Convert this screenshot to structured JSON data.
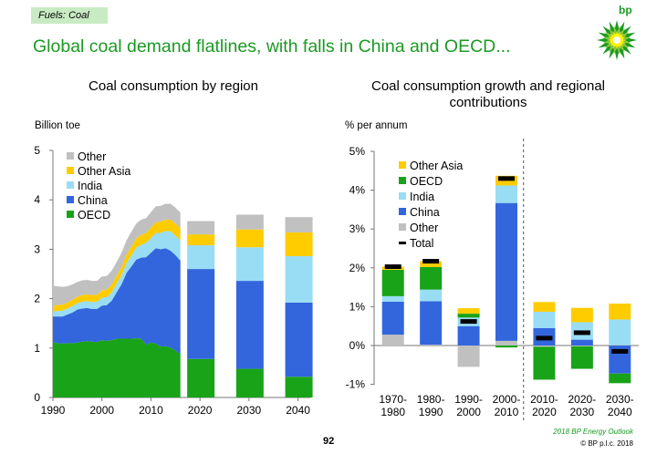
{
  "tag": "Fuels: Coal",
  "headline": "Global coal demand flatlines, with falls in China and OECD...",
  "logo_text": "bp",
  "page_number": "92",
  "source": "2018 BP Energy Outlook",
  "copyright": "© BP p.l.c. 2018",
  "colors": {
    "Other": "#c0c0c0",
    "Other Asia": "#ffcc00",
    "India": "#99ddf5",
    "China": "#3366dd",
    "OECD": "#19a319",
    "Total": "#000000"
  },
  "chart_data": [
    {
      "type": "area",
      "title": "Coal consumption by region",
      "ylabel": "Billion toe",
      "ylim": [
        0,
        5
      ],
      "yticks": [
        "0",
        "1",
        "2",
        "3",
        "4",
        "5"
      ],
      "xticks": [
        "1990",
        "2000",
        "2010",
        "2020",
        "2030",
        "2040"
      ],
      "legend": [
        "Other",
        "Other Asia",
        "India",
        "China",
        "OECD"
      ],
      "legend_position": "top-left",
      "historical": {
        "x": [
          1990,
          1991,
          1992,
          1993,
          1994,
          1995,
          1996,
          1997,
          1998,
          1999,
          2000,
          2001,
          2002,
          2003,
          2004,
          2005,
          2006,
          2007,
          2008,
          2009,
          2010,
          2011,
          2012,
          2013,
          2014,
          2015,
          2016
        ],
        "series": [
          {
            "name": "OECD",
            "values": [
              1.12,
              1.1,
              1.09,
              1.1,
              1.1,
              1.11,
              1.13,
              1.14,
              1.13,
              1.12,
              1.16,
              1.15,
              1.16,
              1.19,
              1.19,
              1.19,
              1.19,
              1.2,
              1.19,
              1.07,
              1.11,
              1.09,
              1.03,
              1.04,
              1.01,
              0.95,
              0.88
            ]
          },
          {
            "name": "China",
            "values": [
              0.52,
              0.54,
              0.55,
              0.58,
              0.62,
              0.67,
              0.67,
              0.67,
              0.66,
              0.67,
              0.7,
              0.72,
              0.8,
              0.94,
              1.1,
              1.33,
              1.46,
              1.59,
              1.64,
              1.77,
              1.82,
              1.93,
              1.97,
              1.98,
              1.96,
              1.93,
              1.89
            ]
          },
          {
            "name": "India",
            "values": [
              0.1,
              0.11,
              0.12,
              0.12,
              0.13,
              0.13,
              0.14,
              0.14,
              0.14,
              0.15,
              0.16,
              0.16,
              0.17,
              0.17,
              0.18,
              0.2,
              0.22,
              0.24,
              0.26,
              0.29,
              0.3,
              0.31,
              0.33,
              0.35,
              0.39,
              0.4,
              0.41
            ]
          },
          {
            "name": "Other Asia",
            "values": [
              0.12,
              0.12,
              0.12,
              0.12,
              0.13,
              0.13,
              0.13,
              0.14,
              0.14,
              0.14,
              0.15,
              0.15,
              0.16,
              0.16,
              0.17,
              0.17,
              0.18,
              0.19,
              0.2,
              0.2,
              0.21,
              0.22,
              0.23,
              0.23,
              0.24,
              0.24,
              0.25
            ]
          },
          {
            "name": "Other",
            "values": [
              0.4,
              0.38,
              0.36,
              0.33,
              0.31,
              0.3,
              0.3,
              0.29,
              0.29,
              0.28,
              0.28,
              0.28,
              0.28,
              0.28,
              0.29,
              0.29,
              0.3,
              0.3,
              0.31,
              0.3,
              0.31,
              0.32,
              0.32,
              0.32,
              0.32,
              0.32,
              0.31
            ]
          }
        ]
      },
      "projection": {
        "categories": [
          "2020",
          "2030",
          "2040"
        ],
        "series": [
          {
            "name": "OECD",
            "values": [
              0.78,
              0.58,
              0.42
            ]
          },
          {
            "name": "China",
            "values": [
              1.82,
              1.78,
              1.5
            ]
          },
          {
            "name": "India",
            "values": [
              0.48,
              0.68,
              0.94
            ]
          },
          {
            "name": "Other Asia",
            "values": [
              0.22,
              0.36,
              0.48
            ]
          },
          {
            "name": "Other",
            "values": [
              0.27,
              0.3,
              0.31
            ]
          }
        ]
      }
    },
    {
      "type": "bar",
      "title": "Coal consumption growth and regional contributions",
      "ylabel": "% per annum",
      "ylim": [
        -1,
        5
      ],
      "yticks": [
        "-1%",
        "0%",
        "1%",
        "2%",
        "3%",
        "4%",
        "5%"
      ],
      "legend": [
        "Other Asia",
        "OECD",
        "India",
        "China",
        "Other",
        "Total"
      ],
      "legend_position": "top-left",
      "categories": [
        [
          "1970-",
          "1980"
        ],
        [
          "1980-",
          "1990"
        ],
        [
          "1990-",
          "2000"
        ],
        [
          "2000-",
          "2010"
        ],
        [
          "2010-",
          "2020"
        ],
        [
          "2020-",
          "2030"
        ],
        [
          "2030-",
          "2040"
        ]
      ],
      "series": [
        {
          "name": "Other",
          "values": [
            0.28,
            0.02,
            -0.55,
            0.12,
            -0.03,
            -0.02,
            0.01
          ]
        },
        {
          "name": "China",
          "values": [
            0.85,
            1.12,
            0.5,
            3.55,
            0.45,
            0.15,
            -0.72
          ]
        },
        {
          "name": "India",
          "values": [
            0.14,
            0.3,
            0.22,
            0.45,
            0.42,
            0.45,
            0.66
          ]
        },
        {
          "name": "OECD",
          "values": [
            0.68,
            0.58,
            0.1,
            -0.05,
            -0.85,
            -0.58,
            -0.25
          ]
        },
        {
          "name": "Other Asia",
          "values": [
            0.08,
            0.15,
            0.14,
            0.25,
            0.25,
            0.37,
            0.41
          ]
        }
      ],
      "total": [
        2.03,
        2.17,
        0.62,
        4.3,
        0.19,
        0.33,
        -0.15
      ],
      "divider_after": "2000-2010"
    }
  ]
}
